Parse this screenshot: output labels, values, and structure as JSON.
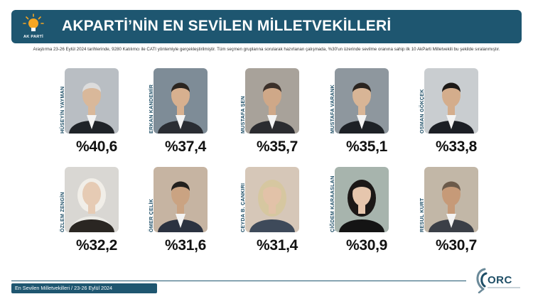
{
  "header": {
    "logo_text": "AK PARTİ",
    "title": "AKPARTİ’NİN EN SEVİLEN MİLLETVEKİLLERİ"
  },
  "note": "Araştırma 23-26 Eylül 2024 tarihlerinde, 9280 Katılımcı ile CATI yöntemiyle gerçekleştirilmiştir. Tüm seçmen gruplarına sorularak hazırlanan çalışmada, %30'un üzerinde sevilme oranına sahip ilk 10 AkParti Milletvekili bu şekilde sıralanmıştır.",
  "colors": {
    "brand": "#1e5670",
    "accent": "#f5a623",
    "text": "#111111"
  },
  "chart_data": {
    "type": "bar",
    "categories": [
      "HÜSEYİN YAYMAN",
      "ERKAN KANDEMİR",
      "MUSTAFA ŞEN",
      "MUSTAFA VARANK",
      "OSMAN GÖKÇEK",
      "ÖZLEM ZENGİN",
      "ÖMER ÇELİK",
      "CEYDA B. ÇANKIRI",
      "ÇİĞDEM KARAASLAN",
      "RESUL KURT"
    ],
    "values": [
      40.6,
      37.4,
      35.7,
      35.1,
      33.8,
      32.2,
      31.6,
      31.4,
      30.9,
      30.7
    ],
    "labels": [
      "%40,6",
      "%37,4",
      "%35,7",
      "%35,1",
      "%33,8",
      "%32,2",
      "%31,6",
      "%31,4",
      "%30,9",
      "%30,7"
    ]
  },
  "footer": {
    "caption": "En Sevilen Milletvekilleri / 23-26 Eylül 2024",
    "brand": "ORC"
  }
}
